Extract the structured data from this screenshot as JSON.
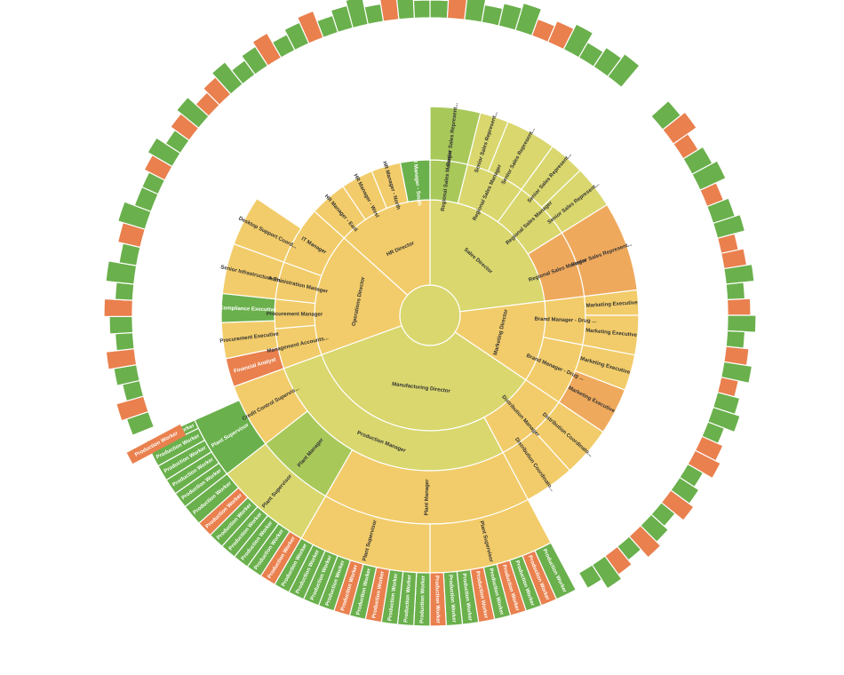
{
  "chart_data": {
    "type": "sunburst",
    "title": "",
    "colors": {
      "good": "#6ab04c",
      "ok": "#a8c85a",
      "mid": "#d9d76e",
      "warn": "#f2cc6a",
      "high": "#efa95c",
      "bad": "#e9804e"
    },
    "levels": [
      [
        {
          "label": "",
          "start": 0,
          "end": 360,
          "c": "mid"
        }
      ],
      [
        {
          "label": "Sales Director",
          "start": 0,
          "end": 83,
          "c": "mid"
        },
        {
          "label": "Marketing Director",
          "start": 83,
          "end": 124,
          "c": "warn"
        },
        {
          "label": "Manufacturing Director",
          "start": 124,
          "end": 250,
          "c": "mid"
        },
        {
          "label": "Operations Director",
          "start": 250,
          "end": 312,
          "c": "warn"
        },
        {
          "label": "HR Director",
          "start": 312,
          "end": 360,
          "c": "warn"
        }
      ],
      [
        {
          "label": "Regional Sales Manager",
          "start": 0,
          "end": 14,
          "c": "ok"
        },
        {
          "label": "Regional Sales Manager",
          "start": 14,
          "end": 36,
          "c": "mid"
        },
        {
          "label": "Regional Sales Manager",
          "start": 36,
          "end": 58,
          "c": "mid"
        },
        {
          "label": "Regional Sales Manager",
          "start": 58,
          "end": 83,
          "c": "high"
        },
        {
          "label": "Brand Manager - Drug ...",
          "start": 83,
          "end": 101,
          "c": "warn"
        },
        {
          "label": "Brand Manager - Drug ...",
          "start": 101,
          "end": 124,
          "c": "warn"
        },
        {
          "label": "Distribution Manager",
          "start": 124,
          "end": 152,
          "c": "warn"
        },
        {
          "label": "Production Manager",
          "start": 152,
          "end": 250,
          "c": "mid"
        },
        {
          "label": "Management Accounts...",
          "start": 250,
          "end": 265,
          "c": "warn"
        },
        {
          "label": "Procurement Manager",
          "start": 265,
          "end": 276,
          "c": "warn"
        },
        {
          "label": "Administration Manager",
          "start": 276,
          "end": 290,
          "c": "warn"
        },
        {
          "label": "IT Manager",
          "start": 290,
          "end": 312,
          "c": "warn"
        },
        {
          "label": "HR Manager - East",
          "start": 312,
          "end": 326,
          "c": "warn"
        },
        {
          "label": "HR Manager - West",
          "start": 326,
          "end": 338,
          "c": "warn"
        },
        {
          "label": "HR Manager - North",
          "start": 338,
          "end": 349,
          "c": "warn"
        },
        {
          "label": "HR Manager - South",
          "start": 349,
          "end": 360,
          "c": "good"
        }
      ],
      [
        {
          "label": "Senior Sales Represent...",
          "start": 0,
          "end": 14,
          "c": "ok"
        },
        {
          "label": "Senior Sales Represent...",
          "start": 14,
          "end": 22,
          "c": "mid"
        },
        {
          "label": "Senior Sales Represent...",
          "start": 22,
          "end": 36,
          "c": "mid"
        },
        {
          "label": "Senior Sales Represent...",
          "start": 36,
          "end": 46,
          "c": "mid"
        },
        {
          "label": "Senior Sales Represent...",
          "start": 46,
          "end": 58,
          "c": "mid"
        },
        {
          "label": "Senior Sales Represent...",
          "start": 58,
          "end": 83,
          "c": "high"
        },
        {
          "label": "Marketing Executive",
          "start": 83,
          "end": 90,
          "c": "warn"
        },
        {
          "label": "Marketing Executive",
          "start": 90,
          "end": 101,
          "c": "warn"
        },
        {
          "label": "Marketing Executive",
          "start": 101,
          "end": 111,
          "c": "warn"
        },
        {
          "label": "Marketing Executive",
          "start": 111,
          "end": 124,
          "c": "high"
        },
        {
          "label": "Distribution Coordinato...",
          "start": 124,
          "end": 138,
          "c": "warn"
        },
        {
          "label": "Distribution Coordinato...",
          "start": 138,
          "end": 152,
          "c": "warn"
        },
        {
          "label": "Plant Manager",
          "start": 152,
          "end": 210,
          "c": "warn"
        },
        {
          "label": "Plant Manager",
          "start": 210,
          "end": 232,
          "c": "ok"
        },
        {
          "label": "Credit Control Supervis...",
          "start": 232,
          "end": 250,
          "c": "warn"
        },
        {
          "label": "Financial Analyst",
          "start": 250,
          "end": 258,
          "c": "bad"
        },
        {
          "label": "Procurement Executive",
          "start": 258,
          "end": 268,
          "c": "warn"
        },
        {
          "label": "Compliance Executive",
          "start": 268,
          "end": 276,
          "c": "good"
        },
        {
          "label": "Senior Infrastructure En...",
          "start": 276,
          "end": 290,
          "c": "warn"
        },
        {
          "label": "Desktop Support Coord...",
          "start": 290,
          "end": 304,
          "c": "warn"
        }
      ],
      [
        {
          "label": "Plant Supervisor",
          "start": 152,
          "end": 180,
          "c": "warn"
        },
        {
          "label": "Plant Supervisor",
          "start": 180,
          "end": 210,
          "c": "warn"
        },
        {
          "label": "Plant Supervisor",
          "start": 210,
          "end": 232,
          "c": "mid"
        },
        {
          "label": "Plant Supervisor",
          "start": 232,
          "end": 246,
          "c": "good"
        }
      ],
      [
        {
          "label": "Production Worker",
          "start": 152,
          "end": 156,
          "c": "good"
        },
        {
          "label": "Production Worker",
          "start": 156,
          "end": 159,
          "c": "bad"
        },
        {
          "label": "Production Worker",
          "start": 159,
          "end": 162,
          "c": "good"
        },
        {
          "label": "Production Worker",
          "start": 162,
          "end": 165,
          "c": "bad"
        },
        {
          "label": "Production Worker",
          "start": 165,
          "end": 168,
          "c": "good"
        },
        {
          "label": "Production Worker",
          "start": 168,
          "end": 171,
          "c": "bad"
        },
        {
          "label": "Production Worker",
          "start": 171,
          "end": 174,
          "c": "good"
        },
        {
          "label": "Production Worker",
          "start": 174,
          "end": 177,
          "c": "good"
        },
        {
          "label": "Production Worker",
          "start": 177,
          "end": 180,
          "c": "bad"
        },
        {
          "label": "Production Worker",
          "start": 180,
          "end": 183,
          "c": "good"
        },
        {
          "label": "Production Worker",
          "start": 183,
          "end": 186,
          "c": "good"
        },
        {
          "label": "Production Worker",
          "start": 186,
          "end": 189,
          "c": "good"
        },
        {
          "label": "Production Worker",
          "start": 189,
          "end": 192,
          "c": "bad"
        },
        {
          "label": "Production Worker",
          "start": 192,
          "end": 195,
          "c": "good"
        },
        {
          "label": "Production Worker",
          "start": 195,
          "end": 198,
          "c": "bad"
        },
        {
          "label": "Production Worker",
          "start": 198,
          "end": 201,
          "c": "good"
        },
        {
          "label": "Production Worker",
          "start": 201,
          "end": 204,
          "c": "good"
        },
        {
          "label": "Production Worker",
          "start": 204,
          "end": 207,
          "c": "good"
        },
        {
          "label": "Production Worker",
          "start": 207,
          "end": 210,
          "c": "good"
        },
        {
          "label": "Production Worker",
          "start": 210,
          "end": 213,
          "c": "bad"
        },
        {
          "label": "Production Worker",
          "start": 213,
          "end": 216,
          "c": "good"
        },
        {
          "label": "Production Worker",
          "start": 216,
          "end": 219,
          "c": "good"
        },
        {
          "label": "Production Worker",
          "start": 219,
          "end": 222,
          "c": "good"
        },
        {
          "label": "Production Worker",
          "start": 222,
          "end": 225,
          "c": "good"
        },
        {
          "label": "Production Worker",
          "start": 225,
          "end": 228,
          "c": "bad"
        },
        {
          "label": "Production Worker",
          "start": 228,
          "end": 232,
          "c": "good"
        },
        {
          "label": "Production Worker",
          "start": 232,
          "end": 235,
          "c": "good"
        },
        {
          "label": "Production Worker",
          "start": 235,
          "end": 238,
          "c": "good"
        },
        {
          "label": "Production Worker",
          "start": 238,
          "end": 241,
          "c": "good"
        },
        {
          "label": "Production Worker",
          "start": 241,
          "end": 244,
          "c": "good"
        },
        {
          "label": "Production Worker",
          "start": 244,
          "end": 246,
          "c": "good"
        }
      ]
    ],
    "outer_bars": [
      {
        "start": 0,
        "end": 40,
        "pattern": "GOGGGGOOGGGG"
      },
      {
        "start": 48,
        "end": 72,
        "pattern": "GOOGGOG"
      },
      {
        "start": 72,
        "end": 150,
        "pattern": "GOOGGOGGOGOGGGOOGGOGGOGOGG"
      },
      {
        "start": 294,
        "end": 360,
        "pattern": "GOGGOGOOGGGOGGOGGGGOGG"
      },
      {
        "start": 248,
        "end": 276,
        "pattern": "GOGGOGGOG"
      },
      {
        "start": 276,
        "end": 294,
        "pattern": "GGOGG"
      }
    ],
    "stray_labels": [
      "Production Worker"
    ]
  }
}
